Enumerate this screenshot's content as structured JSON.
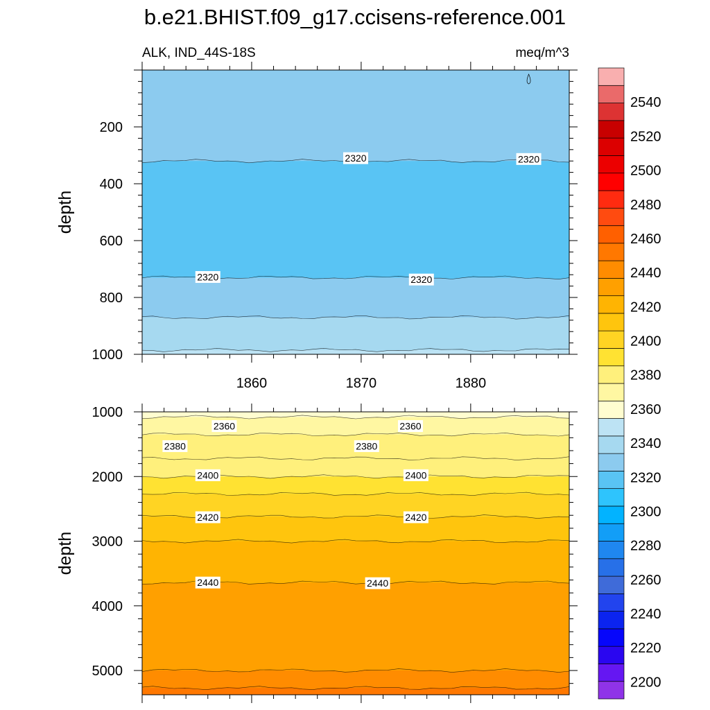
{
  "chart_data": {
    "type": "heatmap",
    "title": "b.e21.BHIST.f09_g17.ccisens-reference.001",
    "variable_label": "ALK, IND_44S-18S",
    "units": "meq/m^3",
    "colormap": [
      "#8f33e8",
      "#6517f2",
      "#2a06f0",
      "#0606fb",
      "#0b24ef",
      "#2244ee",
      "#3f6bd9",
      "#2770e8",
      "#1f87f0",
      "#129ef7",
      "#02b3ff",
      "#2ec4fd",
      "#59c4f4",
      "#8ccbef",
      "#a6d9f0",
      "#bde3f4",
      "#fffdd0",
      "#fff7a2",
      "#fff07c",
      "#ffe232",
      "#ffd423",
      "#ffc50d",
      "#ffb402",
      "#ffa000",
      "#ff8c00",
      "#ff7800",
      "#ff6000",
      "#ff4b10",
      "#ff2b10",
      "#ff0000",
      "#ec0000",
      "#dc0000",
      "#c80000",
      "#dd3333",
      "#ea6a6a",
      "#f9afaf"
    ],
    "colorbar": {
      "min": 2190,
      "max": 2560,
      "ticks": [
        2200,
        2220,
        2240,
        2260,
        2280,
        2300,
        2320,
        2340,
        2360,
        2380,
        2400,
        2420,
        2440,
        2460,
        2480,
        2500,
        2520,
        2540
      ]
    },
    "panels": [
      {
        "name": "upper",
        "ylabel": "depth",
        "ylim": [
          0,
          1000
        ],
        "yticks": [
          200,
          400,
          600,
          800,
          1000
        ],
        "xlim": [
          1850,
          1889
        ],
        "xticks": [
          1860,
          1870,
          1880
        ],
        "bands": [
          {
            "value_from": 2320,
            "value_to": 2330,
            "from_depth": 0,
            "to_depth": 320
          },
          {
            "value_from": 2310,
            "value_to": 2320,
            "from_depth": 320,
            "to_depth": 730
          },
          {
            "value_from": 2320,
            "value_to": 2330,
            "from_depth": 730,
            "to_depth": 870
          },
          {
            "value_from": 2330,
            "value_to": 2340,
            "from_depth": 870,
            "to_depth": 985
          },
          {
            "value_from": 2340,
            "value_to": 2350,
            "from_depth": 985,
            "to_depth": 1000
          }
        ],
        "contour_labels": [
          {
            "text": "2320",
            "x": 1869.5,
            "depth": 310
          },
          {
            "text": "2320",
            "x": 1885.3,
            "depth": 313
          },
          {
            "text": "2320",
            "x": 1856.0,
            "depth": 728
          },
          {
            "text": "2320",
            "x": 1875.5,
            "depth": 737
          }
        ]
      },
      {
        "name": "lower",
        "ylabel": "depth",
        "ylim": [
          1000,
          5375
        ],
        "yticks": [
          1000,
          2000,
          3000,
          4000,
          5000
        ],
        "xlim": [
          1850,
          1889
        ],
        "xticks": [],
        "bands": [
          {
            "value_from": 2350,
            "value_to": 2360,
            "from_depth": 1000,
            "to_depth": 1080
          },
          {
            "value_from": 2360,
            "value_to": 2370,
            "from_depth": 1080,
            "to_depth": 1350
          },
          {
            "value_from": 2370,
            "value_to": 2380,
            "from_depth": 1350,
            "to_depth": 1720
          },
          {
            "value_from": 2380,
            "value_to": 2390,
            "from_depth": 1720,
            "to_depth": 2000
          },
          {
            "value_from": 2390,
            "value_to": 2400,
            "from_depth": 2000,
            "to_depth": 2270
          },
          {
            "value_from": 2400,
            "value_to": 2410,
            "from_depth": 2270,
            "to_depth": 2620
          },
          {
            "value_from": 2410,
            "value_to": 2420,
            "from_depth": 2620,
            "to_depth": 3000
          },
          {
            "value_from": 2420,
            "value_to": 2430,
            "from_depth": 3000,
            "to_depth": 3640
          },
          {
            "value_from": 2430,
            "value_to": 2440,
            "from_depth": 3640,
            "to_depth": 5000
          },
          {
            "value_from": 2440,
            "value_to": 2450,
            "from_depth": 5000,
            "to_depth": 5270
          },
          {
            "value_from": 2450,
            "value_to": 2460,
            "from_depth": 5270,
            "to_depth": 5375
          }
        ],
        "contour_labels": [
          {
            "text": "2360",
            "x": 1857.5,
            "depth": 1220
          },
          {
            "text": "2360",
            "x": 1874.5,
            "depth": 1220
          },
          {
            "text": "2380",
            "x": 1853.0,
            "depth": 1530
          },
          {
            "text": "2380",
            "x": 1870.5,
            "depth": 1530
          },
          {
            "text": "2400",
            "x": 1856.0,
            "depth": 1980
          },
          {
            "text": "2400",
            "x": 1875.0,
            "depth": 1980
          },
          {
            "text": "2420",
            "x": 1856.0,
            "depth": 2630
          },
          {
            "text": "2420",
            "x": 1875.0,
            "depth": 2630
          },
          {
            "text": "2440",
            "x": 1856.0,
            "depth": 3640
          },
          {
            "text": "2440",
            "x": 1871.5,
            "depth": 3650
          }
        ]
      }
    ]
  }
}
